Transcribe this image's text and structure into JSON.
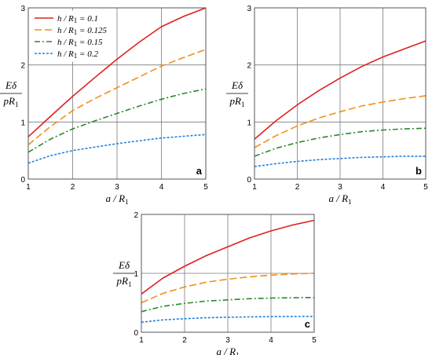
{
  "chart_data": [
    {
      "type": "line",
      "panel_label": "a",
      "xlabel": "a / R1",
      "ylabel": "Eδ / pR1",
      "xlim": [
        1,
        5
      ],
      "ylim": [
        0,
        3
      ],
      "x_ticks": [
        "1",
        "2",
        "3",
        "4",
        "5"
      ],
      "y_ticks": [
        "0",
        "1",
        "2",
        "3"
      ],
      "grid": true,
      "legend_position": "top-left",
      "x": [
        1,
        1.5,
        2,
        2.5,
        3,
        3.5,
        4,
        4.5,
        5
      ],
      "series": [
        {
          "name": "h / R1 = 0.1",
          "color": "#e02020",
          "dash": "solid",
          "values": [
            0.74,
            1.1,
            1.45,
            1.78,
            2.1,
            2.4,
            2.67,
            2.85,
            3.0
          ]
        },
        {
          "name": "h / R1 = 0.125",
          "color": "#f0901a",
          "dash": "long-dash",
          "values": [
            0.6,
            0.92,
            1.2,
            1.41,
            1.6,
            1.79,
            1.98,
            2.13,
            2.27
          ]
        },
        {
          "name": "h / R1 = 0.15",
          "color": "#2a8a2a",
          "dash": "dash-dot",
          "values": [
            0.47,
            0.7,
            0.88,
            1.02,
            1.15,
            1.28,
            1.4,
            1.5,
            1.58
          ]
        },
        {
          "name": "h / R1 = 0.2",
          "color": "#2080e0",
          "dash": "dotted",
          "values": [
            0.28,
            0.41,
            0.5,
            0.56,
            0.62,
            0.67,
            0.72,
            0.75,
            0.78
          ]
        }
      ]
    },
    {
      "type": "line",
      "panel_label": "b",
      "xlabel": "a / R1",
      "ylabel": "Eδ / pR1",
      "xlim": [
        1,
        5
      ],
      "ylim": [
        0,
        3
      ],
      "x_ticks": [
        "1",
        "2",
        "3",
        "4",
        "5"
      ],
      "y_ticks": [
        "0",
        "1",
        "2",
        "3"
      ],
      "grid": true,
      "x": [
        1,
        1.5,
        2,
        2.5,
        3,
        3.5,
        4,
        4.5,
        5
      ],
      "series": [
        {
          "name": "h / R1 = 0.1",
          "color": "#e02020",
          "dash": "solid",
          "values": [
            0.7,
            1.02,
            1.3,
            1.55,
            1.77,
            1.97,
            2.14,
            2.28,
            2.42
          ]
        },
        {
          "name": "h / R1 = 0.125",
          "color": "#f0901a",
          "dash": "long-dash",
          "values": [
            0.55,
            0.76,
            0.93,
            1.07,
            1.18,
            1.28,
            1.35,
            1.41,
            1.46
          ]
        },
        {
          "name": "h / R1 = 0.15",
          "color": "#2a8a2a",
          "dash": "dash-dot",
          "values": [
            0.4,
            0.54,
            0.64,
            0.72,
            0.78,
            0.83,
            0.86,
            0.88,
            0.89
          ]
        },
        {
          "name": "h / R1 = 0.2",
          "color": "#2080e0",
          "dash": "dotted",
          "values": [
            0.22,
            0.27,
            0.31,
            0.34,
            0.36,
            0.38,
            0.39,
            0.4,
            0.4
          ]
        }
      ]
    },
    {
      "type": "line",
      "panel_label": "c",
      "xlabel": "a / R1",
      "ylabel": "Eδ / pR1",
      "xlim": [
        1,
        5
      ],
      "ylim": [
        0,
        2
      ],
      "x_ticks": [
        "1",
        "2",
        "3",
        "4",
        "5"
      ],
      "y_ticks": [
        "0",
        "1",
        "2"
      ],
      "grid": true,
      "x": [
        1,
        1.5,
        2,
        2.5,
        3,
        3.5,
        4,
        4.5,
        5
      ],
      "series": [
        {
          "name": "h / R1 = 0.1",
          "color": "#e02020",
          "dash": "solid",
          "values": [
            0.65,
            0.92,
            1.12,
            1.3,
            1.45,
            1.6,
            1.72,
            1.82,
            1.9
          ]
        },
        {
          "name": "h / R1 = 0.125",
          "color": "#f0901a",
          "dash": "long-dash",
          "values": [
            0.5,
            0.66,
            0.77,
            0.85,
            0.9,
            0.94,
            0.97,
            0.99,
            1.0
          ]
        },
        {
          "name": "h / R1 = 0.15",
          "color": "#2a8a2a",
          "dash": "dash-dot",
          "values": [
            0.35,
            0.44,
            0.49,
            0.53,
            0.55,
            0.57,
            0.58,
            0.585,
            0.59
          ]
        },
        {
          "name": "h / R1 = 0.2",
          "color": "#2080e0",
          "dash": "dotted",
          "values": [
            0.17,
            0.21,
            0.23,
            0.245,
            0.255,
            0.26,
            0.265,
            0.268,
            0.27
          ]
        }
      ]
    }
  ]
}
